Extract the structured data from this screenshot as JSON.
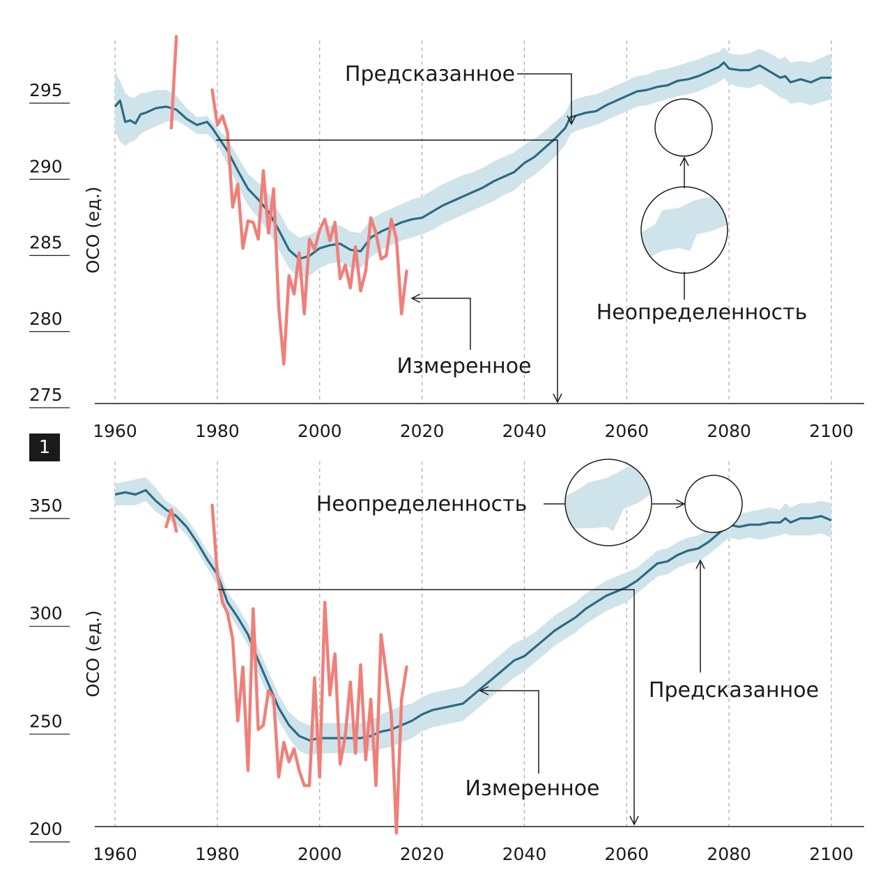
{
  "colors": {
    "predicted": "#2a6a84",
    "band": "#cfe3ea",
    "measured": "#f07f79",
    "grid": "#a8a8a8",
    "axis": "#1a1a1a",
    "badge": "#1a1a1a"
  },
  "panel_badge": "1",
  "chart_data": [
    {
      "type": "line",
      "xlabel": "",
      "ylabel": "ОСО (ед.)",
      "xlim": [
        1960,
        2100
      ],
      "ylim": [
        275,
        300
      ],
      "xticks": [
        1960,
        1980,
        2000,
        2020,
        2040,
        2060,
        2080,
        2100
      ],
      "yticks": [
        275,
        280,
        285,
        290,
        295
      ],
      "grid": "vertical dashed",
      "annotations": {
        "predicted": "Предсказанное",
        "measured": "Измеренное",
        "uncertainty": "Неопределенность"
      },
      "series": [
        {
          "x": [
            1960,
            1961,
            1962,
            1963,
            1964,
            1965,
            1966,
            1968,
            1970,
            1972,
            1974,
            1976,
            1978,
            1979,
            1980,
            1982,
            1984,
            1986,
            1988,
            1990,
            1992,
            1994,
            1996,
            1998,
            2000,
            2002,
            2004,
            2006,
            2008,
            2010,
            2012,
            2014,
            2016,
            2018,
            2020,
            2022,
            2024,
            2026,
            2028,
            2030,
            2032,
            2034,
            2036,
            2038,
            2040,
            2042,
            2044,
            2046,
            2048,
            2049,
            2050,
            2052,
            2054,
            2056,
            2058,
            2060,
            2062,
            2064,
            2066,
            2068,
            2070,
            2072,
            2074,
            2076,
            2078,
            2079,
            2080,
            2082,
            2084,
            2086,
            2088,
            2090,
            2091,
            2092,
            2094,
            2096,
            2098,
            2100
          ],
          "y": [
            293.9,
            294.3,
            292.9,
            293.0,
            292.8,
            293.4,
            293.5,
            293.8,
            293.9,
            293.7,
            293.1,
            292.7,
            292.9,
            292.5,
            292.0,
            291.0,
            289.7,
            288.5,
            287.8,
            287.0,
            285.8,
            284.5,
            283.9,
            284.1,
            284.6,
            284.8,
            284.9,
            284.5,
            284.4,
            285.3,
            285.7,
            286.0,
            286.3,
            286.5,
            286.6,
            287.0,
            287.4,
            287.7,
            288.0,
            288.3,
            288.6,
            289.0,
            289.3,
            289.6,
            290.2,
            290.6,
            291.2,
            291.8,
            292.5,
            293.2,
            293.3,
            293.5,
            293.6,
            294.0,
            294.3,
            294.6,
            294.9,
            295.0,
            295.2,
            295.3,
            295.6,
            295.7,
            295.9,
            296.2,
            296.5,
            296.8,
            296.4,
            296.3,
            296.3,
            296.6,
            296.2,
            295.8,
            295.9,
            295.5,
            295.7,
            295.5,
            295.8,
            295.8
          ],
          "band_low": [
            292.3,
            291.6,
            291.3,
            291.6,
            291.7,
            292.1,
            292.3,
            292.6,
            292.9,
            293.0,
            292.6,
            292.1,
            292.1,
            291.8,
            291.4,
            290.1,
            288.7,
            287.4,
            286.6,
            285.7,
            284.5,
            283.3,
            282.6,
            282.8,
            283.3,
            283.6,
            283.7,
            283.3,
            283.3,
            284.0,
            284.5,
            284.8,
            285.1,
            285.3,
            285.5,
            285.8,
            286.2,
            286.5,
            286.8,
            287.1,
            287.4,
            287.7,
            288.1,
            288.4,
            289.0,
            289.4,
            290.0,
            290.6,
            291.4,
            292.1,
            292.3,
            292.5,
            292.7,
            293.0,
            293.3,
            293.6,
            293.9,
            294.0,
            294.2,
            294.4,
            294.6,
            294.7,
            294.9,
            295.2,
            295.5,
            295.8,
            295.4,
            295.2,
            295.1,
            295.4,
            295.0,
            294.5,
            294.4,
            294.1,
            294.2,
            294.0,
            294.2,
            294.4
          ],
          "band_high": [
            296.2,
            295.6,
            294.8,
            294.5,
            294.5,
            294.8,
            294.8,
            295.0,
            295.0,
            294.6,
            293.8,
            293.2,
            293.3,
            292.9,
            292.5,
            291.8,
            290.6,
            289.5,
            288.9,
            288.2,
            287.0,
            285.8,
            285.3,
            285.5,
            285.8,
            286.1,
            286.1,
            285.7,
            285.6,
            286.5,
            286.9,
            287.2,
            287.5,
            287.8,
            288.0,
            288.4,
            288.8,
            289.1,
            289.4,
            289.6,
            289.9,
            290.3,
            290.6,
            290.9,
            291.4,
            291.8,
            292.3,
            292.9,
            293.5,
            294.2,
            294.4,
            294.6,
            294.7,
            295.0,
            295.3,
            295.6,
            295.9,
            296.0,
            296.3,
            296.4,
            296.6,
            296.8,
            297.0,
            297.3,
            297.5,
            297.8,
            297.4,
            297.3,
            297.4,
            297.7,
            297.4,
            297.0,
            297.2,
            296.8,
            296.9,
            296.8,
            297.1,
            297.4
          ]
        },
        {
          "x": [
            1971,
            1972
          ],
          "y": [
            292.5,
            298.5
          ]
        },
        {
          "x": [
            1979,
            1980,
            1981,
            1982,
            1983,
            1984,
            1985,
            1986,
            1987,
            1988,
            1989,
            1990,
            1991,
            1992,
            1993,
            1994,
            1995,
            1996,
            1997,
            1998,
            1999,
            2000,
            2001,
            2002,
            2003,
            2004,
            2005,
            2006,
            2007,
            2008,
            2009,
            2010,
            2011,
            2012,
            2013,
            2014,
            2015,
            2016,
            2017
          ],
          "y": [
            295.0,
            292.7,
            293.3,
            292.2,
            287.3,
            288.8,
            284.6,
            286.4,
            286.3,
            285.2,
            289.7,
            285.6,
            288.5,
            280.7,
            277.0,
            282.8,
            281.6,
            284.3,
            280.3,
            285.2,
            284.5,
            285.8,
            286.5,
            285.1,
            286.3,
            282.6,
            283.5,
            282.0,
            284.7,
            281.8,
            283.1,
            286.6,
            285.6,
            283.9,
            284.1,
            286.5,
            285.2,
            280.3,
            283.1
          ]
        }
      ]
    },
    {
      "type": "line",
      "xlabel": "",
      "ylabel": "ОСО (ед.)",
      "xlim": [
        1960,
        2100
      ],
      "ylim": [
        195,
        365
      ],
      "xticks": [
        1960,
        1980,
        2000,
        2020,
        2040,
        2060,
        2080,
        2100
      ],
      "yticks": [
        200,
        250,
        300,
        350
      ],
      "grid": "vertical dashed",
      "annotations": {
        "predicted": "Предсказанное",
        "measured": "Измеренное",
        "uncertainty": "Неопределенность"
      },
      "series": [
        {
          "x": [
            1960,
            1962,
            1964,
            1966,
            1968,
            1970,
            1972,
            1974,
            1976,
            1978,
            1980,
            1982,
            1984,
            1986,
            1988,
            1990,
            1992,
            1994,
            1996,
            1998,
            2000,
            2002,
            2004,
            2006,
            2008,
            2010,
            2012,
            2014,
            2016,
            2018,
            2020,
            2022,
            2024,
            2026,
            2028,
            2030,
            2032,
            2034,
            2036,
            2038,
            2040,
            2042,
            2044,
            2046,
            2048,
            2050,
            2052,
            2054,
            2056,
            2058,
            2060,
            2062,
            2064,
            2066,
            2068,
            2070,
            2072,
            2074,
            2076,
            2078,
            2080,
            2082,
            2084,
            2086,
            2088,
            2090,
            2091,
            2092,
            2094,
            2096,
            2098,
            2100
          ],
          "y": [
            355,
            356,
            355,
            357,
            352,
            348,
            345,
            340,
            333,
            325,
            318,
            305,
            298,
            290,
            278,
            267,
            256,
            248,
            243,
            241,
            242,
            242,
            242,
            242,
            242,
            243,
            245,
            246,
            248,
            250,
            253,
            255,
            256,
            257,
            258,
            262,
            266,
            270,
            274,
            278,
            280,
            284,
            288,
            292,
            295,
            298,
            302,
            305,
            308,
            310,
            312,
            315,
            319,
            323,
            324,
            327,
            329,
            330,
            333,
            337,
            341,
            340,
            341,
            341,
            342,
            342,
            344,
            342,
            344,
            344,
            345,
            343
          ],
          "band_low": [
            350,
            350,
            350,
            352,
            347,
            344,
            341,
            336,
            329,
            321,
            313,
            301,
            293,
            285,
            272,
            261,
            250,
            242,
            236,
            234,
            235,
            235,
            235,
            235,
            235,
            236,
            237,
            238,
            240,
            242,
            245,
            247,
            248,
            249,
            250,
            254,
            258,
            262,
            266,
            270,
            273,
            277,
            281,
            285,
            288,
            291,
            295,
            298,
            301,
            303,
            305,
            309,
            313,
            317,
            318,
            321,
            323,
            324,
            327,
            331,
            335,
            334,
            335,
            334,
            335,
            336,
            337,
            336,
            336,
            336,
            337,
            335
          ],
          "band_high": [
            360,
            361,
            362,
            363,
            358,
            352,
            349,
            344,
            337,
            329,
            323,
            310,
            303,
            295,
            284,
            273,
            262,
            254,
            250,
            248,
            249,
            249,
            249,
            249,
            249,
            250,
            253,
            255,
            257,
            258,
            261,
            263,
            264,
            265,
            266,
            270,
            274,
            278,
            282,
            286,
            288,
            291,
            295,
            299,
            302,
            305,
            309,
            312,
            315,
            317,
            319,
            321,
            325,
            329,
            330,
            333,
            335,
            336,
            339,
            343,
            347,
            346,
            347,
            348,
            349,
            348,
            351,
            349,
            351,
            351,
            352,
            351
          ]
        },
        {
          "x": [
            1970,
            1971,
            1972
          ],
          "y": [
            340,
            348,
            338
          ]
        },
        {
          "x": [
            1979,
            1980,
            1981,
            1982,
            1983,
            1984,
            1985,
            1986,
            1987,
            1988,
            1989,
            1990,
            1991,
            1992,
            1993,
            1994,
            1995,
            1996,
            1997,
            1998,
            1999,
            2000,
            2001,
            2002,
            2003,
            2004,
            2005,
            2006,
            2007,
            2008,
            2009,
            2010,
            2011,
            2012,
            2013,
            2014,
            2015,
            2016,
            2017
          ],
          "y": [
            350,
            318,
            305,
            300,
            288,
            250,
            275,
            227,
            302,
            246,
            248,
            264,
            261,
            224,
            240,
            231,
            237,
            227,
            220,
            220,
            270,
            224,
            305,
            262,
            281,
            230,
            243,
            268,
            235,
            276,
            232,
            260,
            220,
            290,
            272,
            253,
            198,
            260,
            275
          ]
        }
      ]
    }
  ]
}
